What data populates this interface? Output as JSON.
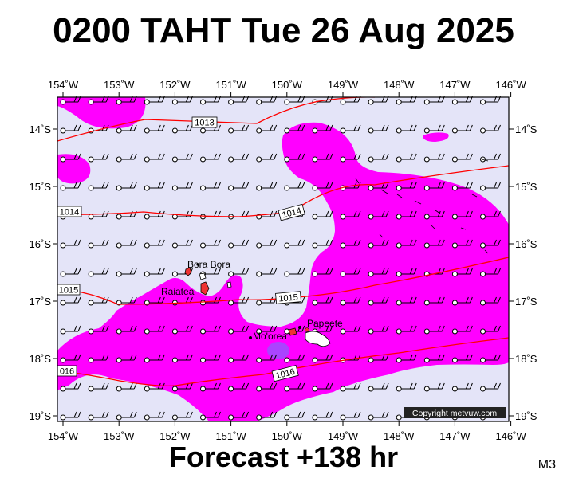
{
  "title": "0200 TAHT Tue 26 Aug 2025",
  "forecast_label": "Forecast +138 hr",
  "model_tag": "M3",
  "copyright": "Copyright metvuw.com",
  "map": {
    "lon_ticks": [
      "154˚W",
      "153˚W",
      "152˚W",
      "151˚W",
      "150˚W",
      "149˚W",
      "148˚W",
      "147˚W",
      "146˚W"
    ],
    "lat_ticks": [
      "14˚S",
      "15˚S",
      "16˚S",
      "17˚S",
      "18˚S",
      "19˚S"
    ],
    "isobars": [
      {
        "label": "1013"
      },
      {
        "label": "1014"
      },
      {
        "label": "1014"
      },
      {
        "label": "1015"
      },
      {
        "label": "1015"
      },
      {
        "label": "1016"
      },
      {
        "label": "016"
      }
    ],
    "places": [
      "Bora Bora",
      "Raiatea",
      "Mo'orea",
      "Papeete"
    ],
    "colors": {
      "background": "#e4e4f8",
      "rain": "#ff00ff",
      "heavy_rain": "#aa44ff",
      "isobar": "#ff0000",
      "land": "#ee3333"
    }
  }
}
